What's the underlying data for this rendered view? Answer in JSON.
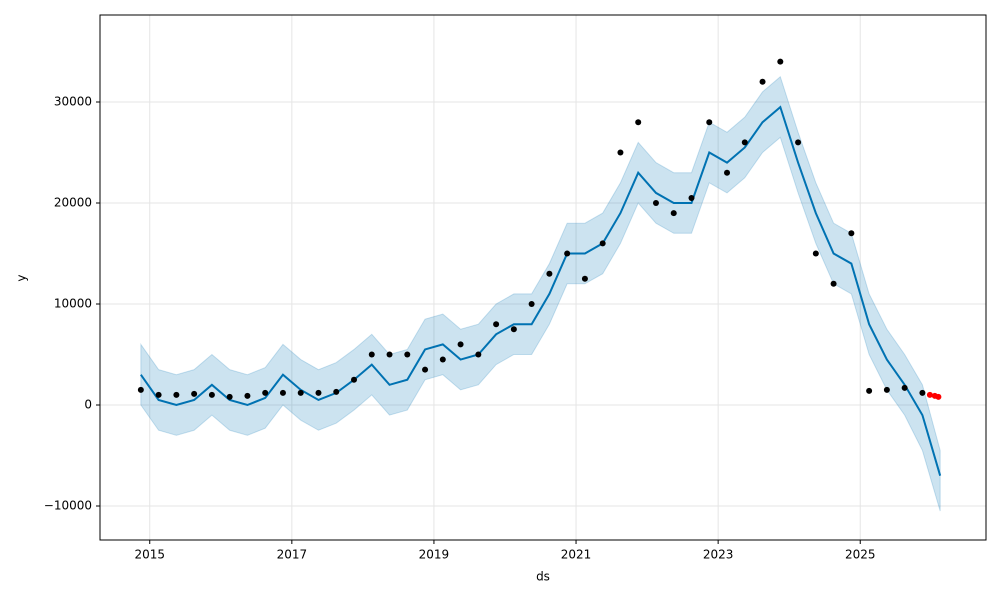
{
  "chart_data": {
    "type": "forecast",
    "xlabel": "ds",
    "ylabel": "y",
    "xlim": [
      2014.3,
      2026.77
    ],
    "ylim": [
      -13366,
      38614
    ],
    "xticks": [
      2015,
      2017,
      2019,
      2021,
      2023,
      2025
    ],
    "yticks": [
      {
        "value": -10000,
        "label": "−10000"
      },
      0,
      10000,
      20000,
      30000
    ],
    "grid": true,
    "x": [
      2014.875,
      2015.125,
      2015.375,
      2015.625,
      2015.875,
      2016.125,
      2016.375,
      2016.625,
      2016.875,
      2017.125,
      2017.375,
      2017.625,
      2017.875,
      2018.125,
      2018.375,
      2018.625,
      2018.875,
      2019.125,
      2019.375,
      2019.625,
      2019.875,
      2020.125,
      2020.375,
      2020.625,
      2020.875,
      2021.125,
      2021.375,
      2021.625,
      2021.875,
      2022.125,
      2022.375,
      2022.625,
      2022.875,
      2023.125,
      2023.375,
      2023.625,
      2023.875,
      2024.125,
      2024.375,
      2024.625,
      2024.875,
      2025.125,
      2025.375,
      2025.625,
      2025.875,
      2026.125
    ],
    "yhat": [
      3000,
      500,
      0,
      500,
      2000,
      500,
      0,
      700,
      3000,
      1500,
      500,
      1200,
      2500,
      4000,
      2000,
      2500,
      5500,
      6000,
      4500,
      5000,
      7000,
      8000,
      8000,
      11000,
      15000,
      15000,
      16000,
      19000,
      23000,
      21000,
      20000,
      20000,
      25000,
      24000,
      25500,
      28000,
      29500,
      24000,
      19000,
      15000,
      14000,
      8000,
      4500,
      2000,
      -1000,
      -7000
    ],
    "yhat_lower": [
      0,
      -2500,
      -3000,
      -2500,
      -1000,
      -2500,
      -3000,
      -2300,
      0,
      -1500,
      -2500,
      -1800,
      -500,
      1000,
      -1000,
      -500,
      2500,
      3000,
      1500,
      2000,
      4000,
      5000,
      5000,
      8000,
      12000,
      12000,
      13000,
      16000,
      20000,
      18000,
      17000,
      17000,
      22000,
      21000,
      22500,
      25000,
      26500,
      21000,
      16000,
      12000,
      11000,
      5000,
      1500,
      -1000,
      -4500,
      -10500
    ],
    "yhat_upper": [
      6000,
      3500,
      3000,
      3500,
      5000,
      3500,
      3000,
      3700,
      6000,
      4500,
      3500,
      4200,
      5500,
      7000,
      5000,
      5500,
      8500,
      9000,
      7500,
      8000,
      10000,
      11000,
      11000,
      14000,
      18000,
      18000,
      19000,
      22000,
      26000,
      24000,
      23000,
      23000,
      28000,
      27000,
      28500,
      31000,
      32500,
      27000,
      22000,
      18000,
      17000,
      11000,
      7500,
      5000,
      2000,
      -4500
    ],
    "observed": [
      1500,
      1000,
      1000,
      1100,
      1000,
      800,
      900,
      1200,
      1200,
      1200,
      1200,
      1300,
      2500,
      5000,
      5000,
      5000,
      3500,
      4500,
      6000,
      5000,
      8000,
      7500,
      10000,
      13000,
      15000,
      12500,
      16000,
      25000,
      28000,
      20000,
      19000,
      20500,
      28000,
      23000,
      26000,
      32000,
      34000,
      26000,
      15000,
      12000,
      17000,
      1400,
      1500,
      1700,
      1200,
      null
    ],
    "recent": {
      "x": [
        2025.98,
        2026.05,
        2026.1
      ],
      "values": [
        1000,
        900,
        800
      ]
    },
    "line_color": "#0072B2",
    "band_color": "#0072B2",
    "observed_color": "#000000",
    "recent_color": "#ff0000"
  }
}
